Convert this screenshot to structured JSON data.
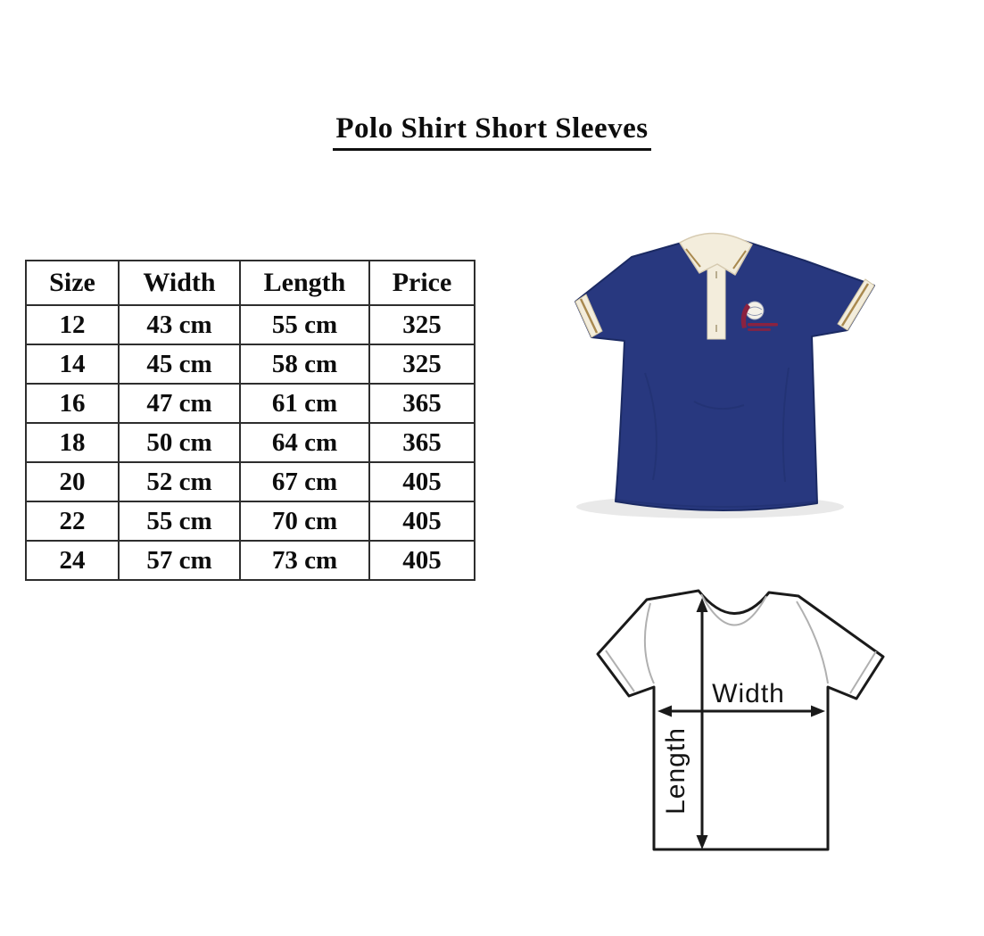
{
  "page": {
    "title": "Polo Shirt Short Sleeves"
  },
  "size_chart": {
    "headers": [
      "Size",
      "Width",
      "Length",
      "Price"
    ],
    "rows": [
      [
        "12",
        "43 cm",
        "55 cm",
        "325"
      ],
      [
        "14",
        "45 cm",
        "58 cm",
        "325"
      ],
      [
        "16",
        "47 cm",
        "61 cm",
        "365"
      ],
      [
        "18",
        "50 cm",
        "64 cm",
        "365"
      ],
      [
        "20",
        "52 cm",
        "67 cm",
        "405"
      ],
      [
        "22",
        "55 cm",
        "70 cm",
        "405"
      ],
      [
        "24",
        "57 cm",
        "73 cm",
        "405"
      ]
    ]
  },
  "product_photo": {
    "description": "Navy blue short-sleeve polo shirt with cream collar, cream placket, tan-striped cuffs and embroidered chest logo"
  },
  "measurement_diagram": {
    "width_label": "Width",
    "length_label": "Length",
    "description": "T-shirt outline showing width measured across the chest and length measured from shoulder to hem"
  },
  "theme": {
    "shirt_navy": "#28387f",
    "shirt_navy_dark": "#1b2a63",
    "collar_cream": "#f3eddc",
    "trim_tan": "#a9894f",
    "logo_maroon": "#8a2240",
    "diagram_line": "#1a1a1a",
    "table_border": "#2e2e2e"
  }
}
